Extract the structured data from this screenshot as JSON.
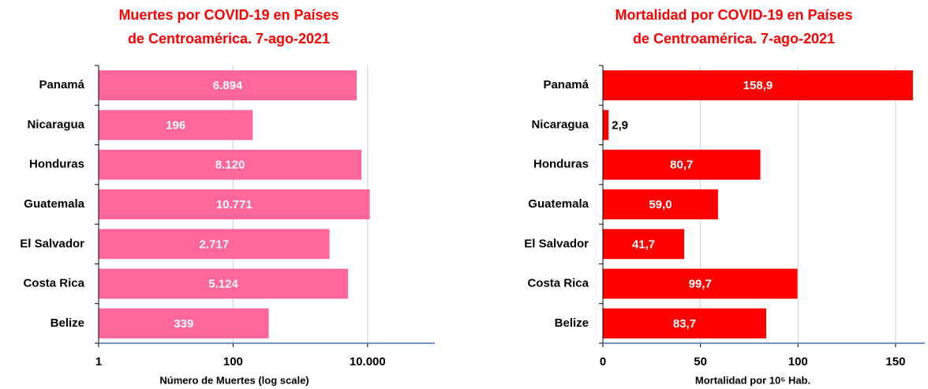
{
  "chart_data": [
    {
      "type": "bar",
      "orientation": "horizontal",
      "title": "Muertes por COVID-19 en Países de Centroamérica. 7-ago-2021",
      "xlabel": "Número de Muertes (log scale)",
      "categories": [
        "Panamá",
        "Nicaragua",
        "Honduras",
        "Guatemala",
        "El Salvador",
        "Costa Rica",
        "Belize"
      ],
      "values": [
        6894,
        196,
        8120,
        10771,
        2717,
        5124,
        339
      ],
      "value_labels": [
        "6.894",
        "196",
        "8.120",
        "10.771",
        "2.717",
        "5.124",
        "339"
      ],
      "color": "#ff6699",
      "xscale": "log",
      "xlim": [
        1,
        100000
      ],
      "xticks": [
        1,
        100,
        {
          "value": 10000,
          "label": "10.000"
        }
      ],
      "grid": true
    },
    {
      "type": "bar",
      "orientation": "horizontal",
      "title": "Mortalidad por COVID-19 en Países de Centroamérica. 7-ago-2021",
      "xlabel": "Mortalidad por 10⁵ Hab.",
      "categories": [
        "Panamá",
        "Nicaragua",
        "Honduras",
        "Guatemala",
        "El Salvador",
        "Costa Rica",
        "Belize"
      ],
      "values": [
        158.9,
        2.9,
        80.7,
        59.0,
        41.7,
        99.7,
        83.7
      ],
      "value_labels": [
        "158,9",
        "2,9",
        "80,7",
        "59,0",
        "41,7",
        "99,7",
        "83,7"
      ],
      "color": "#ff0000",
      "xscale": "linear",
      "xlim": [
        0,
        165
      ],
      "xticks": [
        0,
        50,
        100,
        150
      ],
      "grid": true
    }
  ]
}
